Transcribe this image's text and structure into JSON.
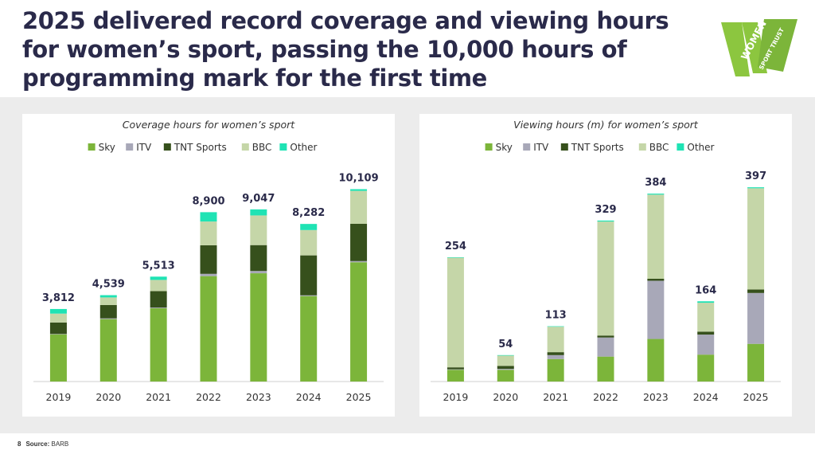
{
  "page": {
    "title": "2025 delivered record coverage and viewing hours for women’s sport, passing the 10,000 hours of programming mark for the first time",
    "logo_text_top": "WOMEN’S",
    "logo_text_bottom": "SPORT TRUST",
    "page_number": "8",
    "source_label": "Source:",
    "source_value": "BARB",
    "colors": {
      "Sky": "#7cb53a",
      "ITV": "#a8a8b8",
      "TNT Sports": "#36501c",
      "BBC": "#c5d6a8",
      "Other": "#1fe3b4",
      "title": "#2a2a4a",
      "logo": "#8cc63f"
    }
  },
  "chart_data": [
    {
      "type": "bar",
      "stacked": true,
      "title": "Coverage hours for women’s sport",
      "categories": [
        "2019",
        "2020",
        "2021",
        "2022",
        "2023",
        "2024",
        "2025"
      ],
      "totals": [
        "3,812",
        "4,539",
        "5,513",
        "8,900",
        "9,047",
        "8,282",
        "10,109"
      ],
      "ylim": [
        0,
        10800
      ],
      "legend_position": "top",
      "grid": false,
      "series": [
        {
          "name": "Sky",
          "values": [
            2480,
            3280,
            3850,
            5540,
            5690,
            4490,
            6270
          ]
        },
        {
          "name": "ITV",
          "values": [
            20,
            40,
            40,
            120,
            120,
            40,
            60
          ]
        },
        {
          "name": "TNT Sports",
          "values": [
            600,
            700,
            860,
            1500,
            1360,
            2100,
            1960
          ]
        },
        {
          "name": "BBC",
          "values": [
            470,
            400,
            590,
            1250,
            1560,
            1330,
            1730
          ]
        },
        {
          "name": "Other",
          "values": [
            242,
            119,
            173,
            490,
            317,
            322,
            89
          ]
        }
      ]
    },
    {
      "type": "bar",
      "stacked": true,
      "title": "Viewing hours (m) for women’s sport",
      "categories": [
        "2019",
        "2020",
        "2021",
        "2022",
        "2023",
        "2024",
        "2025"
      ],
      "totals": [
        "254",
        "54",
        "113",
        "329",
        "384",
        "164",
        "397"
      ],
      "ylim": [
        0,
        420
      ],
      "legend_position": "top",
      "grid": false,
      "series": [
        {
          "name": "Sky",
          "values": [
            24,
            24,
            46,
            51,
            87,
            55,
            77
          ]
        },
        {
          "name": "ITV",
          "values": [
            1,
            2,
            8,
            39,
            119,
            41,
            104
          ]
        },
        {
          "name": "TNT Sports",
          "values": [
            4,
            6,
            6,
            4,
            4,
            6,
            7
          ]
        },
        {
          "name": "BBC",
          "values": [
            224,
            21,
            52,
            233,
            172,
            59,
            207
          ]
        },
        {
          "name": "Other",
          "values": [
            1,
            1,
            1,
            2,
            2,
            3,
            2
          ]
        }
      ]
    }
  ]
}
